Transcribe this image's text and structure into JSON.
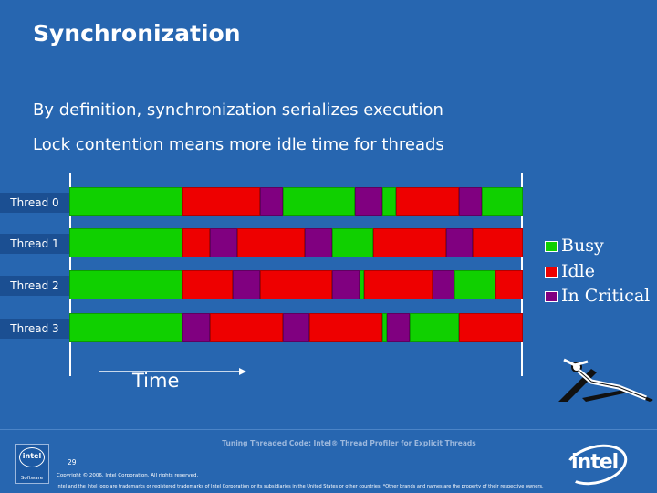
{
  "title": "Synchronization",
  "bullets": [
    "By definition, synchronization serializes execution",
    "Lock contention means more idle time for threads"
  ],
  "colors": {
    "busy": "#10d000",
    "idle": "#ee0000",
    "critical": "#800080"
  },
  "threads": [
    {
      "label": "Thread 0",
      "segments": [
        [
          "busy",
          0,
          0.25
        ],
        [
          "idle",
          0.25,
          0.42
        ],
        [
          "critical",
          0.42,
          0.47
        ],
        [
          "busy",
          0.47,
          0.63
        ],
        [
          "critical",
          0.63,
          0.69
        ],
        [
          "busy",
          0.69,
          0.72
        ],
        [
          "idle",
          0.72,
          0.86
        ],
        [
          "critical",
          0.86,
          0.91
        ],
        [
          "busy",
          0.91,
          1
        ]
      ]
    },
    {
      "label": "Thread 1",
      "segments": [
        [
          "busy",
          0,
          0.25
        ],
        [
          "idle",
          0.25,
          0.31
        ],
        [
          "critical",
          0.31,
          0.37
        ],
        [
          "idle",
          0.37,
          0.52
        ],
        [
          "critical",
          0.52,
          0.58
        ],
        [
          "busy",
          0.58,
          0.67
        ],
        [
          "idle",
          0.67,
          0.83
        ],
        [
          "critical",
          0.83,
          0.89
        ],
        [
          "idle",
          0.89,
          1
        ]
      ]
    },
    {
      "label": "Thread 2",
      "segments": [
        [
          "busy",
          0,
          0.25
        ],
        [
          "idle",
          0.25,
          0.36
        ],
        [
          "critical",
          0.36,
          0.42
        ],
        [
          "idle",
          0.42,
          0.58
        ],
        [
          "critical",
          0.58,
          0.64
        ],
        [
          "busy",
          0.64,
          0.65
        ],
        [
          "idle",
          0.65,
          0.8
        ],
        [
          "critical",
          0.8,
          0.85
        ],
        [
          "busy",
          0.85,
          0.94
        ],
        [
          "idle",
          0.94,
          1
        ]
      ]
    },
    {
      "label": "Thread 3",
      "segments": [
        [
          "busy",
          0,
          0.25
        ],
        [
          "critical",
          0.25,
          0.31
        ],
        [
          "idle",
          0.31,
          0.47
        ],
        [
          "critical",
          0.47,
          0.53
        ],
        [
          "idle",
          0.53,
          0.69
        ],
        [
          "busy",
          0.69,
          0.7
        ],
        [
          "critical",
          0.7,
          0.75
        ],
        [
          "busy",
          0.75,
          0.86
        ],
        [
          "idle",
          0.86,
          1
        ]
      ]
    }
  ],
  "legend": [
    {
      "key": "busy",
      "label": "Busy"
    },
    {
      "key": "idle",
      "label": "Idle"
    },
    {
      "key": "critical",
      "label": "In Critical"
    }
  ],
  "time_label": "Time",
  "footer": {
    "title": "Tuning Threaded Code: Intel® Thread Profiler for Explicit Threads",
    "page": "29",
    "copyright": "Copyright © 2006, Intel Corporation. All rights reserved.",
    "trademark": "Intel and the Intel logo are trademarks or registered trademarks of Intel Corporation or its subsidiaries in the United States or other countries. *Other brands and names are the property of their respective owners.",
    "intel_logo_text": "intel",
    "software_logo_text": "intel",
    "software_label": "Software"
  }
}
